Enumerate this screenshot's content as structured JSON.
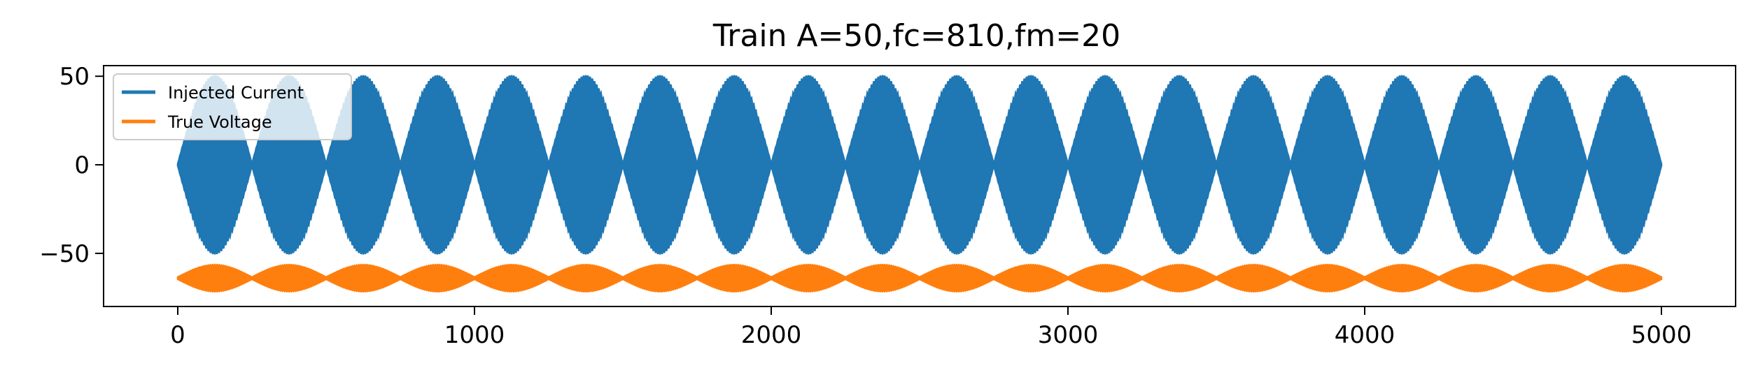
{
  "chart_data": {
    "type": "line",
    "title": "Train A=50,fc=810,fm=20",
    "xlabel": "",
    "ylabel": "",
    "xlim": [
      -250,
      5250
    ],
    "ylim": [
      -80,
      56
    ],
    "xticks": [
      0,
      1000,
      2000,
      3000,
      4000,
      5000
    ],
    "yticks": [
      50,
      0,
      -50
    ],
    "ytick_labels": [
      "50",
      "0",
      "−50"
    ],
    "grid": false,
    "legend_position": "top-left",
    "x_range": [
      0,
      5000
    ],
    "series": [
      {
        "name": "Injected Current",
        "color": "#1f77b4",
        "amplitude": 50,
        "offset": 0,
        "carrier_hz": 810,
        "mod_hz": 20,
        "envelope_period": 250
      },
      {
        "name": "True Voltage",
        "color": "#ff7f0e",
        "amplitude": 7,
        "offset": -64,
        "carrier_hz": 810,
        "mod_hz": 20,
        "envelope_period": 250
      }
    ]
  }
}
